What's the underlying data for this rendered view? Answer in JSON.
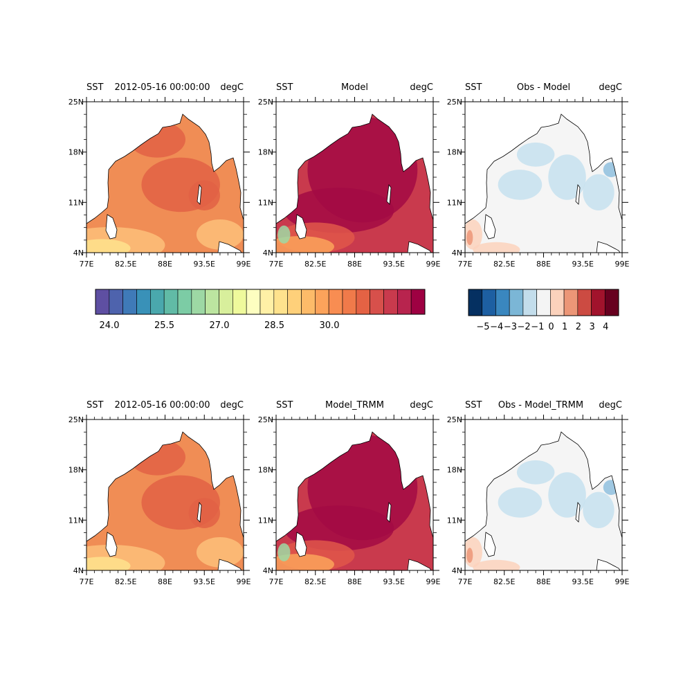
{
  "rows": [
    {
      "panels": [
        {
          "left": "SST",
          "center": "2012-05-16 00:00:00",
          "right": "degC",
          "kind": "obs",
          "centerOffset": 0
        },
        {
          "left": "SST",
          "center": "Model",
          "right": "degC",
          "kind": "model",
          "centerOffset": 0
        },
        {
          "left": "SST",
          "center": "Obs - Model",
          "right": "degC",
          "kind": "diff",
          "centerOffset": 0
        }
      ]
    },
    {
      "panels": [
        {
          "left": "SST",
          "center": "2012-05-16 00:00:00",
          "right": "degC",
          "kind": "obs",
          "centerOffset": 0
        },
        {
          "left": "SST",
          "center": "Model_TRMM",
          "right": "degC",
          "kind": "model",
          "centerOffset": 0
        },
        {
          "left": "SST",
          "center": "Obs - Model_TRMM",
          "right": "degC",
          "kind": "diff",
          "centerOffset": 0
        }
      ]
    }
  ],
  "x_ticks": [
    "77E",
    "82.5E",
    "88E",
    "93.5E",
    "99E"
  ],
  "y_ticks": [
    "25N",
    "18N",
    "11N",
    "4N"
  ],
  "sst_colorbar": {
    "tick_labels": [
      "24.0",
      "25.5",
      "27.0",
      "28.5",
      "30.0"
    ],
    "colors": [
      "#5e4fa2",
      "#4e63ad",
      "#3f7ab8",
      "#3991b8",
      "#4aa8ad",
      "#61bba6",
      "#7ccca5",
      "#9dd8a4",
      "#bce5a0",
      "#d8ef9c",
      "#effa9c",
      "#fdfec0",
      "#fff0a6",
      "#fee28d",
      "#fed07a",
      "#fdbb69",
      "#fca35b",
      "#f88d52",
      "#f07a4a",
      "#e46244",
      "#d7504b",
      "#c93a4d",
      "#b8244e",
      "#9e0142"
    ]
  },
  "diff_colorbar": {
    "tick_labels": [
      "−5",
      "−4",
      "−3",
      "−2",
      "−1",
      "0",
      "1",
      "2",
      "3",
      "4"
    ],
    "colors": [
      "#053061",
      "#1d5fa2",
      "#3a87bf",
      "#7bb6d6",
      "#c3ddeb",
      "#f4f4f4",
      "#fbd2bc",
      "#ec9677",
      "#cc4b42",
      "#a1132c",
      "#67001f"
    ]
  },
  "colors": {
    "obs_base": "#f08d55",
    "obs_warm": "#e26245",
    "obs_cool": "#fdc07a",
    "obs_cooler": "#fee28d",
    "model_base": "#c93a4d",
    "model_hot": "#a30a44",
    "model_mid": "#e0574a",
    "model_cool": "#fca35b",
    "model_green": "#9dd8a4",
    "diff_base": "#f5f5f5",
    "diff_blue": "#c6e0ee",
    "diff_blue2": "#8fc0de",
    "diff_red": "#fbd2bc",
    "diff_red2": "#ec9677"
  }
}
